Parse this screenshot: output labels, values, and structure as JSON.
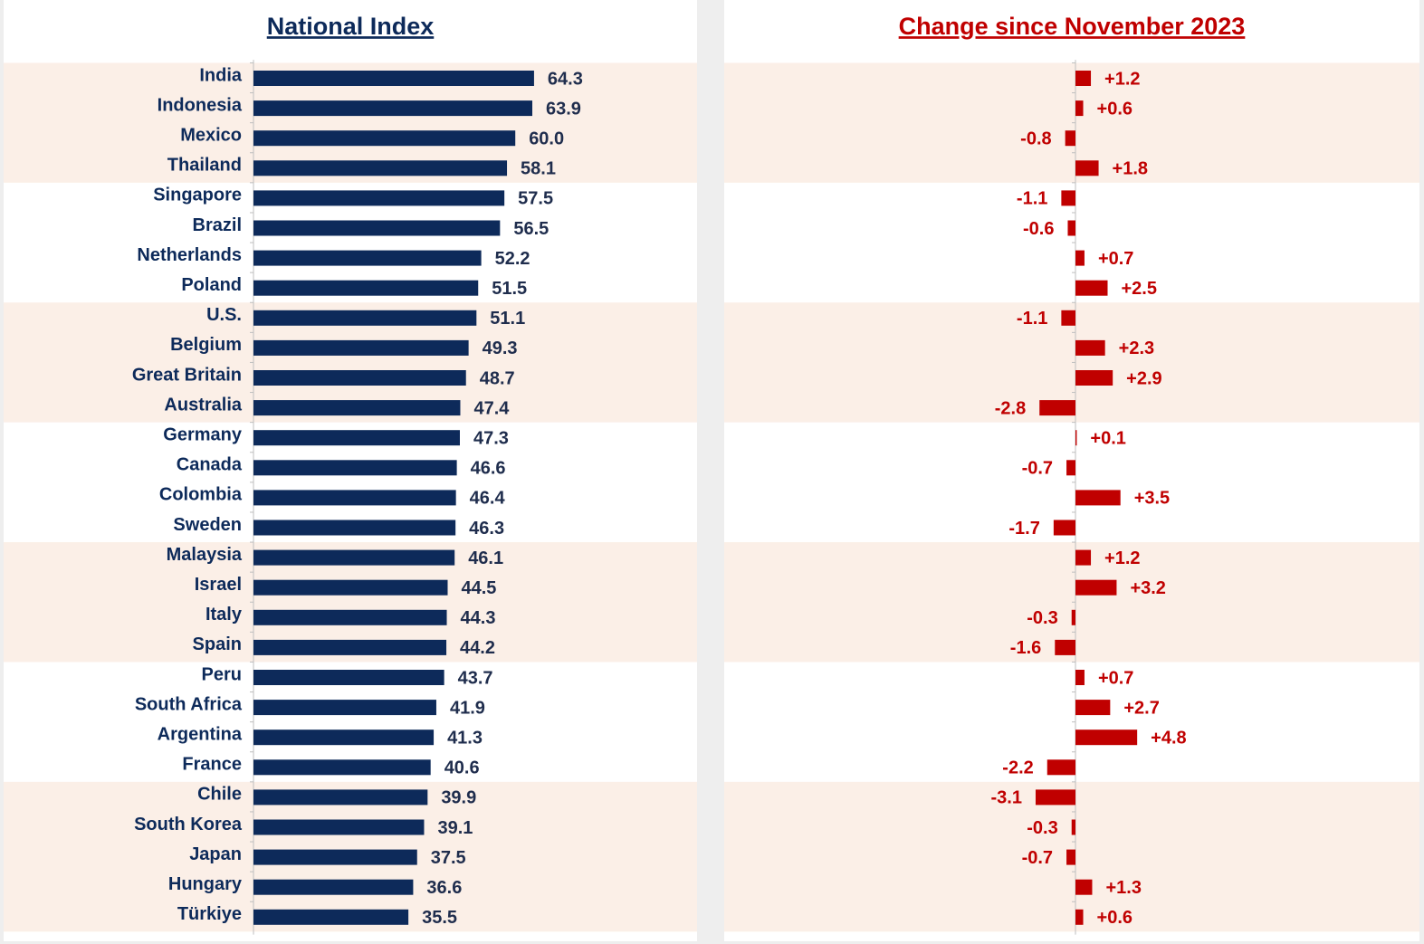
{
  "chart_data": [
    {
      "type": "bar",
      "orientation": "horizontal",
      "title": "National Index",
      "color": "#0d2a5a",
      "categories": [
        "India",
        "Indonesia",
        "Mexico",
        "Thailand",
        "Singapore",
        "Brazil",
        "Netherlands",
        "Poland",
        "U.S.",
        "Belgium",
        "Great Britain",
        "Australia",
        "Germany",
        "Canada",
        "Colombia",
        "Sweden",
        "Malaysia",
        "Israel",
        "Italy",
        "Spain",
        "Peru",
        "South Africa",
        "Argentina",
        "France",
        "Chile",
        "South Korea",
        "Japan",
        "Hungary",
        "Türkiye"
      ],
      "values": [
        64.3,
        63.9,
        60.0,
        58.1,
        57.5,
        56.5,
        52.2,
        51.5,
        51.1,
        49.3,
        48.7,
        47.4,
        47.3,
        46.6,
        46.4,
        46.3,
        46.1,
        44.5,
        44.3,
        44.2,
        43.7,
        41.9,
        41.3,
        40.6,
        39.9,
        39.1,
        37.5,
        36.6,
        35.5
      ],
      "value_labels": [
        "64.3",
        "63.9",
        "60.0",
        "58.1",
        "57.5",
        "56.5",
        "52.2",
        "51.5",
        "51.1",
        "49.3",
        "48.7",
        "47.4",
        "47.3",
        "46.6",
        "46.4",
        "46.3",
        "46.1",
        "44.5",
        "44.3",
        "44.2",
        "43.7",
        "41.9",
        "41.3",
        "40.6",
        "39.9",
        "39.1",
        "37.5",
        "36.6",
        "35.5"
      ],
      "xlim": [
        0,
        100
      ]
    },
    {
      "type": "bar",
      "orientation": "horizontal",
      "title": "Change since November 2023",
      "color": "#c00000",
      "values": [
        1.2,
        0.6,
        -0.8,
        1.8,
        -1.1,
        -0.6,
        0.7,
        2.5,
        -1.1,
        2.3,
        2.9,
        -2.8,
        0.1,
        -0.7,
        3.5,
        -1.7,
        1.2,
        3.2,
        -0.3,
        -1.6,
        0.7,
        2.7,
        4.8,
        -2.2,
        -3.1,
        -0.3,
        -0.7,
        1.3,
        0.6
      ],
      "value_labels": [
        "+1.2",
        "+0.6",
        "-0.8",
        "+1.8",
        "-1.1",
        "-0.6",
        "+0.7",
        "+2.5",
        "-1.1",
        "+2.3",
        "+2.9",
        "-2.8",
        "+0.1",
        "-0.7",
        "+3.5",
        "-1.7",
        "+1.2",
        "+3.2",
        "-0.3",
        "-1.6",
        "+0.7",
        "+2.7",
        "+4.8",
        "-2.2",
        "-3.1",
        "-0.3",
        "-0.7",
        "+1.3",
        "+0.6"
      ],
      "xlim": [
        -10,
        10
      ]
    }
  ]
}
